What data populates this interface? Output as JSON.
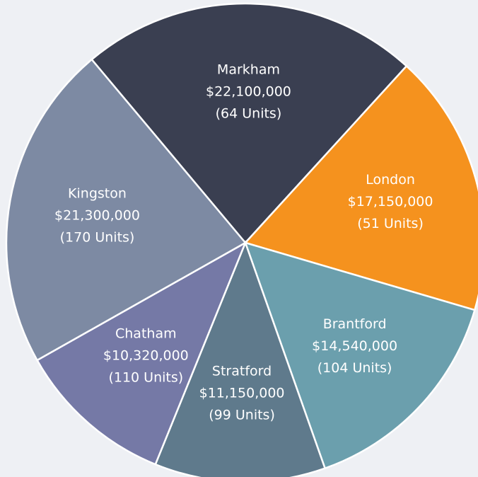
{
  "chart_data": {
    "type": "pie",
    "categories": [
      "Markham",
      "London",
      "Brantford",
      "Stratford",
      "Chatham",
      "Kingston"
    ],
    "values": [
      22100000,
      17150000,
      14540000,
      11150000,
      10320000,
      21300000
    ],
    "value_labels": [
      "$22,100,000",
      "$17,150,000",
      "$14,540,000",
      "$11,150,000",
      "$10,320,000",
      "$21,300,000"
    ],
    "unit_labels": [
      "(64 Units)",
      "(51 Units)",
      "(104 Units)",
      "(99 Units)",
      "(110 Units)",
      "(170 Units)"
    ],
    "colors": [
      "#3a3f51",
      "#f5921e",
      "#6b9fad",
      "#5f7a8c",
      "#7579a6",
      "#7d8aa3"
    ]
  }
}
